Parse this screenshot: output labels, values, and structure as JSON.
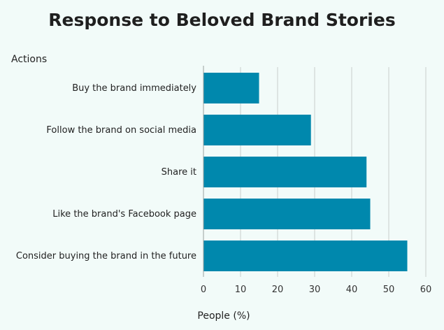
{
  "chart_data": {
    "type": "bar",
    "orientation": "horizontal",
    "title": "Response to Beloved Brand Stories",
    "ylabel": "Actions",
    "xlabel": "People (%)",
    "categories": [
      "Buy the brand immediately",
      "Follow the brand on social media",
      "Share it",
      "Like the brand's Facebook page",
      "Consider buying the brand in the future"
    ],
    "values": [
      15,
      29,
      44,
      45,
      55
    ],
    "xlim": [
      0,
      60
    ],
    "xticks": [
      0,
      10,
      20,
      30,
      40,
      50,
      60
    ],
    "grid": true,
    "bar_color": "#0088ad",
    "grid_color": "#c8cccc"
  }
}
